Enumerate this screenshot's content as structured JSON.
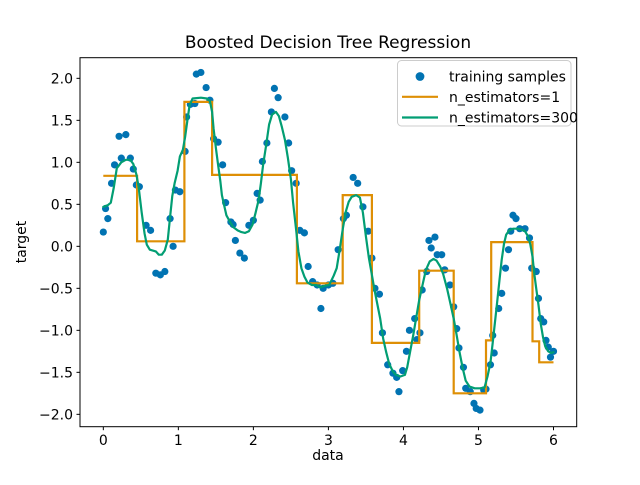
{
  "figure": {
    "background": "#ffffff"
  },
  "chart_data": {
    "type": "scatter",
    "title": "Boosted Decision Tree Regression",
    "xlabel": "data",
    "ylabel": "target",
    "xlim": [
      -0.31,
      6.31
    ],
    "ylim": [
      -2.15,
      2.25
    ],
    "xticks": [
      0,
      1,
      2,
      3,
      4,
      5,
      6
    ],
    "yticks": [
      -2.0,
      -1.5,
      -1.0,
      -0.5,
      0.0,
      0.5,
      1.0,
      1.5,
      2.0
    ],
    "grid": false,
    "legend": {
      "position": "upper right",
      "entries": [
        {
          "label": "training samples",
          "type": "marker",
          "color": "#0173b2"
        },
        {
          "label": "n_estimators=1",
          "type": "line",
          "color": "#de8f05"
        },
        {
          "label": "n_estimators=300",
          "type": "line",
          "color": "#029e73"
        }
      ]
    },
    "series": [
      {
        "name": "training samples",
        "type": "scatter",
        "color": "#0173b2",
        "marker_radius": 3.6,
        "points": [
          [
            0.0,
            0.17
          ],
          [
            0.03,
            0.45
          ],
          [
            0.06,
            0.33
          ],
          [
            0.11,
            0.75
          ],
          [
            0.15,
            0.97
          ],
          [
            0.21,
            1.31
          ],
          [
            0.24,
            1.05
          ],
          [
            0.3,
            1.33
          ],
          [
            0.36,
            1.05
          ],
          [
            0.4,
            0.92
          ],
          [
            0.44,
            0.73
          ],
          [
            0.48,
            0.71
          ],
          [
            0.57,
            0.25
          ],
          [
            0.63,
            0.19
          ],
          [
            0.7,
            -0.32
          ],
          [
            0.76,
            -0.34
          ],
          [
            0.82,
            -0.3
          ],
          [
            0.89,
            0.33
          ],
          [
            0.93,
            0.0
          ],
          [
            0.96,
            0.67
          ],
          [
            1.02,
            0.65
          ],
          [
            1.09,
            1.13
          ],
          [
            1.11,
            1.54
          ],
          [
            1.16,
            1.69
          ],
          [
            1.22,
            1.7
          ],
          [
            1.24,
            2.05
          ],
          [
            1.3,
            2.07
          ],
          [
            1.37,
            1.89
          ],
          [
            1.42,
            1.74
          ],
          [
            1.47,
            1.28
          ],
          [
            1.53,
            1.24
          ],
          [
            1.59,
            0.97
          ],
          [
            1.63,
            0.52
          ],
          [
            1.7,
            0.29
          ],
          [
            1.73,
            0.26
          ],
          [
            1.76,
            0.07
          ],
          [
            1.82,
            -0.08
          ],
          [
            1.88,
            -0.14
          ],
          [
            1.94,
            0.25
          ],
          [
            2.0,
            0.31
          ],
          [
            2.05,
            0.63
          ],
          [
            2.09,
            0.55
          ],
          [
            2.12,
            1.01
          ],
          [
            2.18,
            1.23
          ],
          [
            2.24,
            1.6
          ],
          [
            2.28,
            1.88
          ],
          [
            2.33,
            1.77
          ],
          [
            2.42,
            1.54
          ],
          [
            2.47,
            1.23
          ],
          [
            2.51,
            0.9
          ],
          [
            2.57,
            0.75
          ],
          [
            2.62,
            0.19
          ],
          [
            2.68,
            0.16
          ],
          [
            2.73,
            -0.24
          ],
          [
            2.79,
            -0.42
          ],
          [
            2.85,
            -0.46
          ],
          [
            2.9,
            -0.74
          ],
          [
            2.93,
            -0.5
          ],
          [
            3.0,
            -0.46
          ],
          [
            3.06,
            -0.44
          ],
          [
            3.13,
            -0.04
          ],
          [
            3.2,
            0.33
          ],
          [
            3.24,
            0.37
          ],
          [
            3.33,
            0.82
          ],
          [
            3.39,
            0.75
          ],
          [
            3.46,
            0.47
          ],
          [
            3.53,
            0.18
          ],
          [
            3.58,
            -0.14
          ],
          [
            3.62,
            -0.5
          ],
          [
            3.68,
            -0.57
          ],
          [
            3.72,
            -1.03
          ],
          [
            3.79,
            -1.41
          ],
          [
            3.86,
            -1.51
          ],
          [
            3.91,
            -1.56
          ],
          [
            3.94,
            -1.73
          ],
          [
            3.99,
            -1.48
          ],
          [
            4.04,
            -1.25
          ],
          [
            4.08,
            -1.0
          ],
          [
            4.15,
            -0.86
          ],
          [
            4.18,
            -1.11
          ],
          [
            4.22,
            -1.03
          ],
          [
            4.25,
            -0.52
          ],
          [
            4.31,
            -0.3
          ],
          [
            4.34,
            0.07
          ],
          [
            4.37,
            -0.02
          ],
          [
            4.42,
            0.11
          ],
          [
            4.45,
            -0.1
          ],
          [
            4.51,
            -0.1
          ],
          [
            4.55,
            -0.28
          ],
          [
            4.62,
            -0.46
          ],
          [
            4.67,
            -0.72
          ],
          [
            4.71,
            -0.98
          ],
          [
            4.74,
            -1.21
          ],
          [
            4.8,
            -1.44
          ],
          [
            4.83,
            -1.69
          ],
          [
            4.89,
            -1.73
          ],
          [
            4.94,
            -1.87
          ],
          [
            4.97,
            -1.93
          ],
          [
            5.02,
            -1.95
          ],
          [
            5.07,
            -1.71
          ],
          [
            5.1,
            -1.7
          ],
          [
            5.16,
            -1.41
          ],
          [
            5.19,
            -1.06
          ],
          [
            5.21,
            -1.27
          ],
          [
            5.27,
            -0.74
          ],
          [
            5.31,
            -0.56
          ],
          [
            5.36,
            -0.26
          ],
          [
            5.4,
            -0.04
          ],
          [
            5.43,
            0.18
          ],
          [
            5.46,
            0.37
          ],
          [
            5.5,
            0.33
          ],
          [
            5.55,
            0.21
          ],
          [
            5.62,
            0.21
          ],
          [
            5.68,
            0.1
          ],
          [
            5.71,
            -0.26
          ],
          [
            5.77,
            -0.3
          ],
          [
            5.8,
            -0.62
          ],
          [
            5.83,
            -0.86
          ],
          [
            5.87,
            -0.9
          ],
          [
            5.9,
            -1.12
          ],
          [
            5.93,
            -1.2
          ],
          [
            5.96,
            -1.32
          ],
          [
            6.0,
            -1.25
          ]
        ]
      },
      {
        "name": "n_estimators=1",
        "type": "step",
        "color": "#de8f05",
        "linewidth": 2,
        "steps": [
          [
            0.0,
            0.45,
            0.84
          ],
          [
            0.45,
            1.08,
            0.06
          ],
          [
            1.08,
            1.45,
            1.72
          ],
          [
            1.45,
            2.58,
            0.85
          ],
          [
            2.58,
            3.19,
            -0.44
          ],
          [
            3.19,
            3.58,
            0.61
          ],
          [
            3.58,
            4.21,
            -1.15
          ],
          [
            4.21,
            4.67,
            -0.29
          ],
          [
            4.67,
            5.1,
            -1.75
          ],
          [
            5.1,
            5.17,
            -1.12
          ],
          [
            5.17,
            5.72,
            0.05
          ],
          [
            5.72,
            5.81,
            -1.13
          ],
          [
            5.81,
            6.0,
            -1.38
          ]
        ]
      },
      {
        "name": "n_estimators=300",
        "type": "line",
        "color": "#029e73",
        "linewidth": 2,
        "points": [
          [
            0.0,
            0.47
          ],
          [
            0.06,
            0.49
          ],
          [
            0.1,
            0.52
          ],
          [
            0.14,
            0.7
          ],
          [
            0.18,
            0.93
          ],
          [
            0.24,
            1.0
          ],
          [
            0.3,
            1.03
          ],
          [
            0.36,
            1.03
          ],
          [
            0.4,
            0.98
          ],
          [
            0.44,
            0.86
          ],
          [
            0.47,
            0.71
          ],
          [
            0.51,
            0.41
          ],
          [
            0.55,
            0.15
          ],
          [
            0.58,
            0.02
          ],
          [
            0.62,
            -0.04
          ],
          [
            0.7,
            -0.06
          ],
          [
            0.74,
            -0.1
          ],
          [
            0.78,
            -0.1
          ],
          [
            0.82,
            -0.05
          ],
          [
            0.86,
            0.08
          ],
          [
            0.89,
            0.35
          ],
          [
            0.92,
            0.6
          ],
          [
            0.95,
            0.75
          ],
          [
            0.99,
            0.9
          ],
          [
            1.02,
            1.07
          ],
          [
            1.06,
            1.15
          ],
          [
            1.09,
            1.3
          ],
          [
            1.12,
            1.5
          ],
          [
            1.15,
            1.68
          ],
          [
            1.19,
            1.76
          ],
          [
            1.3,
            1.77
          ],
          [
            1.38,
            1.76
          ],
          [
            1.42,
            1.73
          ],
          [
            1.45,
            1.6
          ],
          [
            1.47,
            1.4
          ],
          [
            1.5,
            1.17
          ],
          [
            1.53,
            0.97
          ],
          [
            1.56,
            0.77
          ],
          [
            1.58,
            0.61
          ],
          [
            1.61,
            0.49
          ],
          [
            1.64,
            0.37
          ],
          [
            1.69,
            0.29
          ],
          [
            1.73,
            0.23
          ],
          [
            1.79,
            0.19
          ],
          [
            1.84,
            0.17
          ],
          [
            1.89,
            0.16
          ],
          [
            1.94,
            0.18
          ],
          [
            1.99,
            0.26
          ],
          [
            2.03,
            0.4
          ],
          [
            2.07,
            0.55
          ],
          [
            2.1,
            0.75
          ],
          [
            2.13,
            0.97
          ],
          [
            2.17,
            1.2
          ],
          [
            2.21,
            1.45
          ],
          [
            2.25,
            1.57
          ],
          [
            2.3,
            1.6
          ],
          [
            2.34,
            1.55
          ],
          [
            2.38,
            1.42
          ],
          [
            2.42,
            1.27
          ],
          [
            2.46,
            1.05
          ],
          [
            2.5,
            0.8
          ],
          [
            2.53,
            0.52
          ],
          [
            2.57,
            0.2
          ],
          [
            2.6,
            -0.06
          ],
          [
            2.64,
            -0.26
          ],
          [
            2.68,
            -0.36
          ],
          [
            2.72,
            -0.43
          ],
          [
            2.78,
            -0.46
          ],
          [
            2.84,
            -0.46
          ],
          [
            2.89,
            -0.49
          ],
          [
            2.95,
            -0.47
          ],
          [
            3.01,
            -0.46
          ],
          [
            3.07,
            -0.35
          ],
          [
            3.11,
            -0.26
          ],
          [
            3.15,
            -0.04
          ],
          [
            3.19,
            0.2
          ],
          [
            3.23,
            0.41
          ],
          [
            3.27,
            0.53
          ],
          [
            3.31,
            0.59
          ],
          [
            3.37,
            0.61
          ],
          [
            3.42,
            0.58
          ],
          [
            3.46,
            0.4
          ],
          [
            3.5,
            0.12
          ],
          [
            3.54,
            -0.14
          ],
          [
            3.58,
            -0.34
          ],
          [
            3.61,
            -0.5
          ],
          [
            3.65,
            -0.68
          ],
          [
            3.69,
            -0.86
          ],
          [
            3.73,
            -1.1
          ],
          [
            3.77,
            -1.26
          ],
          [
            3.81,
            -1.4
          ],
          [
            3.86,
            -1.49
          ],
          [
            3.9,
            -1.53
          ],
          [
            3.96,
            -1.55
          ],
          [
            4.02,
            -1.53
          ],
          [
            4.05,
            -1.44
          ],
          [
            4.09,
            -1.25
          ],
          [
            4.13,
            -1.06
          ],
          [
            4.17,
            -0.85
          ],
          [
            4.21,
            -0.64
          ],
          [
            4.26,
            -0.44
          ],
          [
            4.3,
            -0.28
          ],
          [
            4.35,
            -0.18
          ],
          [
            4.4,
            -0.15
          ],
          [
            4.44,
            -0.17
          ],
          [
            4.49,
            -0.24
          ],
          [
            4.53,
            -0.33
          ],
          [
            4.58,
            -0.5
          ],
          [
            4.62,
            -0.66
          ],
          [
            4.67,
            -0.86
          ],
          [
            4.71,
            -1.06
          ],
          [
            4.75,
            -1.27
          ],
          [
            4.79,
            -1.45
          ],
          [
            4.83,
            -1.6
          ],
          [
            4.88,
            -1.67
          ],
          [
            4.95,
            -1.69
          ],
          [
            5.02,
            -1.69
          ],
          [
            5.08,
            -1.68
          ],
          [
            5.12,
            -1.55
          ],
          [
            5.16,
            -1.38
          ],
          [
            5.19,
            -1.15
          ],
          [
            5.22,
            -0.9
          ],
          [
            5.25,
            -0.66
          ],
          [
            5.28,
            -0.4
          ],
          [
            5.31,
            -0.16
          ],
          [
            5.34,
            0.03
          ],
          [
            5.37,
            0.14
          ],
          [
            5.41,
            0.19
          ],
          [
            5.46,
            0.21
          ],
          [
            5.52,
            0.21
          ],
          [
            5.57,
            0.2
          ],
          [
            5.62,
            0.18
          ],
          [
            5.66,
            0.12
          ],
          [
            5.69,
            0.03
          ],
          [
            5.72,
            -0.12
          ],
          [
            5.74,
            -0.3
          ],
          [
            5.77,
            -0.5
          ],
          [
            5.8,
            -0.7
          ],
          [
            5.83,
            -0.92
          ],
          [
            5.86,
            -1.08
          ],
          [
            5.89,
            -1.19
          ],
          [
            5.93,
            -1.25
          ],
          [
            5.97,
            -1.27
          ],
          [
            6.0,
            -1.26
          ]
        ]
      }
    ]
  }
}
